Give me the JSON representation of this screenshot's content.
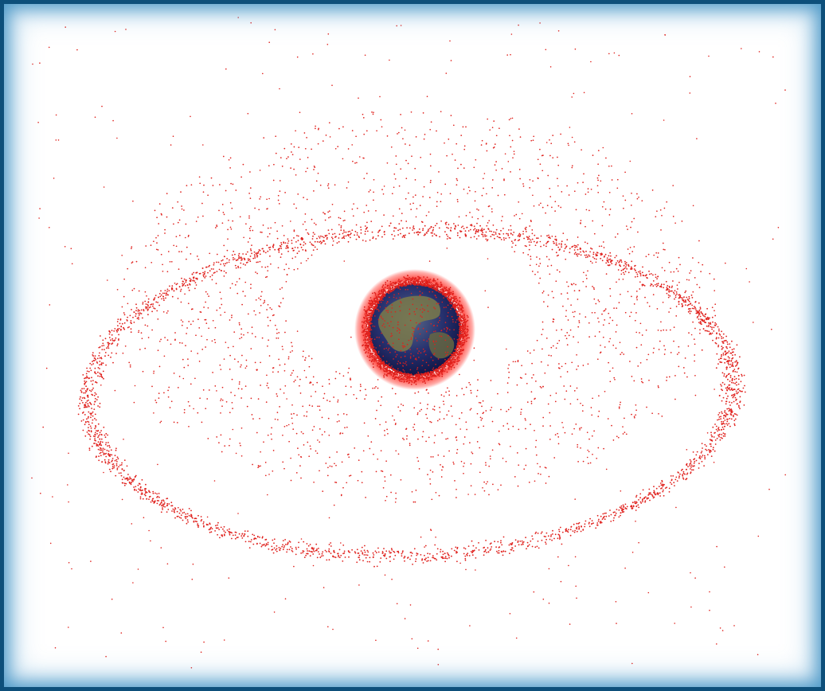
{
  "image": {
    "subject": "",
    "colors": {
      "frame": "#0d4f7a",
      "frame_glow": "#4f9ac8",
      "background": "#ffffff",
      "debris": "#e0201c",
      "ocean": "#1a1f6e",
      "land": "#7b7a4a"
    }
  }
}
